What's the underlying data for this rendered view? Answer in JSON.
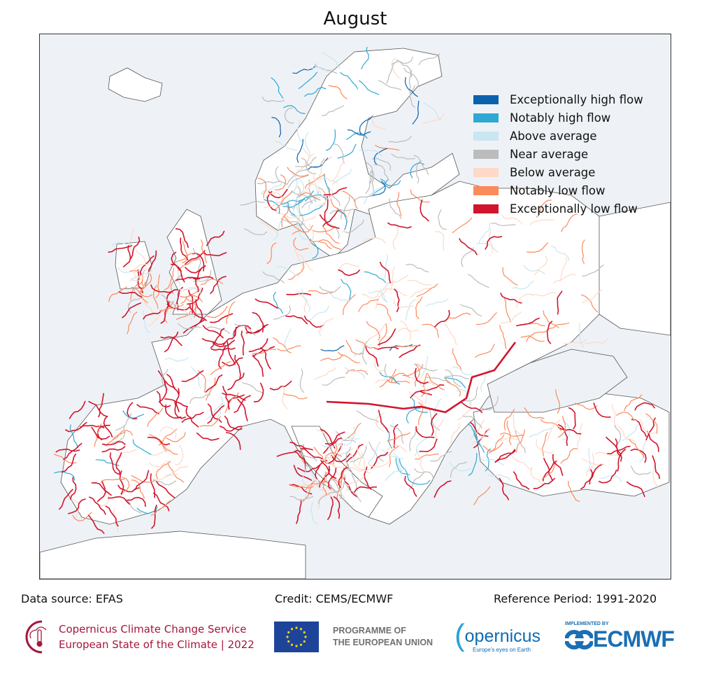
{
  "title": "August",
  "legend": [
    {
      "label": "Exceptionally high flow",
      "color": "#0a62ad"
    },
    {
      "label": "Notably high flow",
      "color": "#2fa8d4"
    },
    {
      "label": "Above average",
      "color": "#c9e6f1"
    },
    {
      "label": "Near average",
      "color": "#bcbcbc"
    },
    {
      "label": "Below average",
      "color": "#fdd9c8"
    },
    {
      "label": "Notably low flow",
      "color": "#fb8a5c"
    },
    {
      "label": "Exceptionally low flow",
      "color": "#d0152d"
    }
  ],
  "colors": {
    "sea": "#eef2f6",
    "land": "#ffffff",
    "coast": "#555555"
  },
  "footer": {
    "source": "Data source: EFAS",
    "credit": "Credit: CEMS/ECMWF",
    "reference": "Reference Period: 1991-2020"
  },
  "logos": {
    "c3s_line1": "Copernicus Climate Change Service",
    "c3s_line2": "European State of the Climate | 2022",
    "eu_line1": "PROGRAMME OF",
    "eu_line2": "THE EUROPEAN UNION",
    "copernicus": "opernicus",
    "copernicus_tag": "Europe's eyes on Earth",
    "ecmwf_tag": "IMPLEMENTED BY",
    "ecmwf": "ECMWF"
  }
}
